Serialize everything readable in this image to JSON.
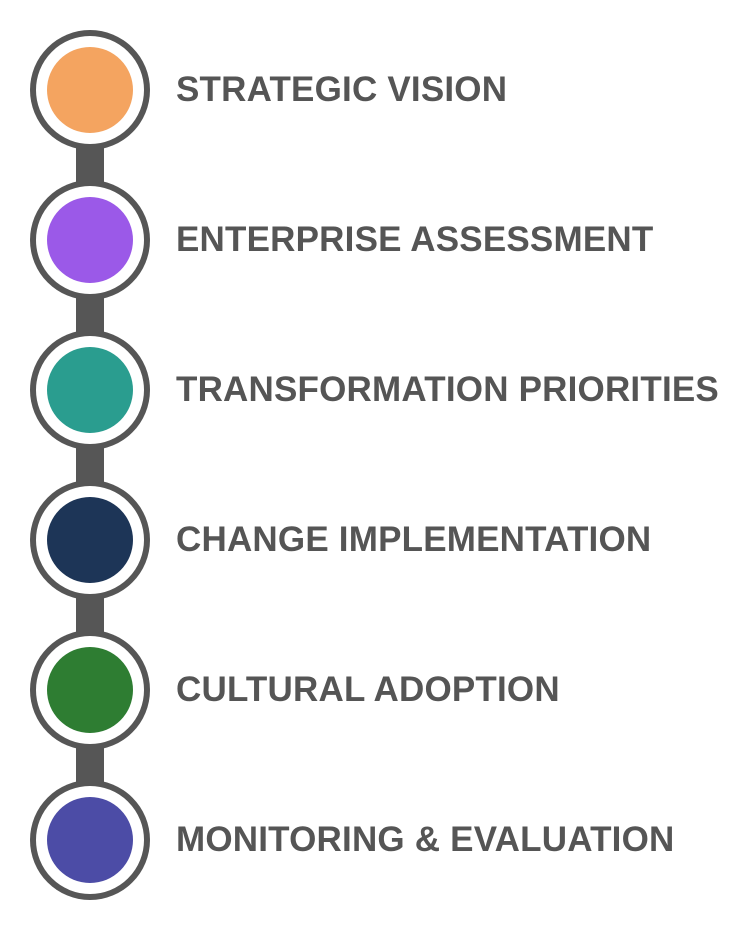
{
  "steps": [
    {
      "label": "STRATEGIC VISION",
      "color": "#F4A460"
    },
    {
      "label": "ENTERPRISE ASSESSMENT",
      "color": "#9B59E8"
    },
    {
      "label": "TRANSFORMATION PRIORITIES",
      "color": "#2A9D8F"
    },
    {
      "label": "CHANGE IMPLEMENTATION",
      "color": "#1D3557"
    },
    {
      "label": "CULTURAL ADOPTION",
      "color": "#2E7D32"
    },
    {
      "label": "MONITORING & EVALUATION",
      "color": "#4C4CA6"
    }
  ],
  "connector_color": "#565656",
  "label_color": "#555555"
}
